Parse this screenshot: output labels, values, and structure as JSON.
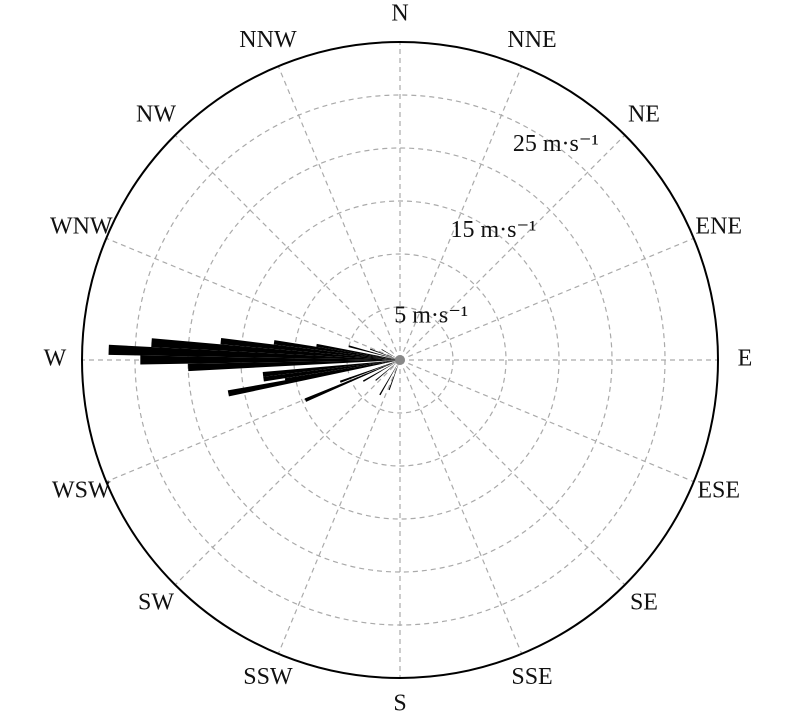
{
  "chart_data": {
    "type": "polar_bar",
    "direction_labels": [
      "N",
      "NNE",
      "NE",
      "ENE",
      "E",
      "ESE",
      "SE",
      "SSE",
      "S",
      "SSW",
      "SW",
      "WSW",
      "W",
      "WNW",
      "NW",
      "NNW"
    ],
    "x": [
      272,
      270,
      274,
      268,
      276,
      259,
      264,
      278,
      262,
      247,
      260,
      250,
      280,
      240,
      285,
      230,
      210,
      200,
      290,
      300
    ],
    "values": [
      27.5,
      24.5,
      23.5,
      20,
      17,
      16.5,
      13,
      12,
      13,
      9.7,
      11,
      6,
      8,
      4,
      5,
      3,
      3.8,
      3,
      3,
      2
    ],
    "color": "#000000",
    "rlim": [
      0,
      30
    ],
    "rgrid": [
      5,
      10,
      15,
      20,
      25
    ],
    "rticks": [
      {
        "value": 5,
        "label": "5 m·s⁻¹"
      },
      {
        "value": 15,
        "label": "15 m·s⁻¹"
      },
      {
        "value": 25,
        "label": "25 m·s⁻¹"
      }
    ]
  }
}
